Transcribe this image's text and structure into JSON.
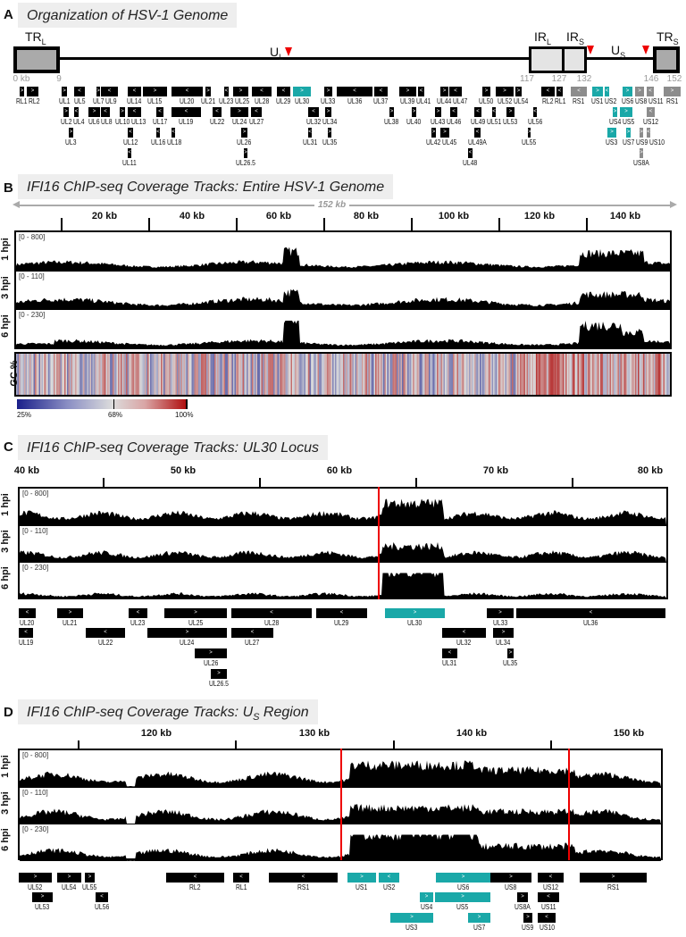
{
  "panelA": {
    "letter": "A",
    "title": "Organization of HSV-1 Genome",
    "regions": {
      "trl": "TR",
      "trl_sub": "L",
      "ul": "U",
      "ul_sub": "L",
      "irl": "IR",
      "irl_sub": "L",
      "irs": "IR",
      "irs_sub": "S",
      "us": "U",
      "us_sub": "S",
      "trs": "TR",
      "trs_sub": "S"
    },
    "coords": [
      "0 kb",
      "9",
      "117",
      "127",
      "132",
      "146",
      "152"
    ],
    "genes": [
      {
        "label": "RL1",
        "strand": ">",
        "color": "#000"
      },
      {
        "label": "RL2",
        "strand": ">",
        "color": "#000"
      },
      {
        "label": "UL1",
        "strand": ">",
        "color": "#000"
      },
      {
        "label": "UL5",
        "strand": "<",
        "color": "#000"
      },
      {
        "label": "UL7",
        "strand": ">",
        "color": "#000"
      },
      {
        "label": "UL9",
        "strand": "<",
        "color": "#000"
      },
      {
        "label": "UL14",
        "strand": "<",
        "color": "#000"
      },
      {
        "label": "UL15",
        "strand": ">",
        "color": "#000"
      },
      {
        "label": "UL20",
        "strand": "<",
        "color": "#000"
      },
      {
        "label": "UL21",
        "strand": ">",
        "color": "#000"
      },
      {
        "label": "UL23",
        "strand": "<",
        "color": "#000"
      },
      {
        "label": "UL25",
        "strand": ">",
        "color": "#000"
      },
      {
        "label": "UL28",
        "strand": "<",
        "color": "#000"
      },
      {
        "label": "UL29",
        "strand": "<",
        "color": "#000"
      },
      {
        "label": "UL30",
        "strand": ">",
        "color": "#1aa8a8"
      },
      {
        "label": "UL33",
        "strand": ">",
        "color": "#000"
      },
      {
        "label": "UL36",
        "strand": "<",
        "color": "#000"
      },
      {
        "label": "UL37",
        "strand": "<",
        "color": "#000"
      },
      {
        "label": "UL39",
        "strand": ">",
        "color": "#000"
      },
      {
        "label": "UL41",
        "strand": "<",
        "color": "#000"
      },
      {
        "label": "UL44",
        "strand": ">",
        "color": "#000"
      },
      {
        "label": "UL47",
        "strand": "<",
        "color": "#000"
      },
      {
        "label": "UL50",
        "strand": ">",
        "color": "#000"
      },
      {
        "label": "UL52",
        "strand": ">",
        "color": "#000"
      },
      {
        "label": "UL54",
        "strand": ">",
        "color": "#000"
      },
      {
        "label": "RL2",
        "strand": "<",
        "color": "#000"
      },
      {
        "label": "RL1",
        "strand": "<",
        "color": "#000"
      },
      {
        "label": "RS1",
        "strand": "<",
        "color": "#8c8c8c"
      },
      {
        "label": "US1",
        "strand": ">",
        "color": "#1aa8a8"
      },
      {
        "label": "US2",
        "strand": "<",
        "color": "#1aa8a8"
      },
      {
        "label": "US6",
        "strand": ">",
        "color": "#1aa8a8"
      },
      {
        "label": "US8",
        "strand": ">",
        "color": "#8c8c8c"
      },
      {
        "label": "US11",
        "strand": "<",
        "color": "#8c8c8c"
      },
      {
        "label": "RS1",
        "strand": ">",
        "color": "#8c8c8c"
      },
      {
        "label": "UL2",
        "strand": ">",
        "color": "#000"
      },
      {
        "label": "UL4",
        "strand": "<",
        "color": "#000"
      },
      {
        "label": "UL6",
        "strand": ">",
        "color": "#000"
      },
      {
        "label": "UL8",
        "strand": "<",
        "color": "#000"
      },
      {
        "label": "UL10",
        "strand": ">",
        "color": "#000"
      },
      {
        "label": "UL13",
        "strand": "<",
        "color": "#000"
      },
      {
        "label": "UL17",
        "strand": "<",
        "color": "#000"
      },
      {
        "label": "UL19",
        "strand": "<",
        "color": "#000"
      },
      {
        "label": "UL22",
        "strand": "<",
        "color": "#000"
      },
      {
        "label": "UL24",
        "strand": ">",
        "color": "#000"
      },
      {
        "label": "UL27",
        "strand": "<",
        "color": "#000"
      },
      {
        "label": "UL32",
        "strand": "<",
        "color": "#000"
      },
      {
        "label": "UL34",
        "strand": ">",
        "color": "#000"
      },
      {
        "label": "UL38",
        "strand": ">",
        "color": "#000"
      },
      {
        "label": "UL40",
        "strand": ">",
        "color": "#000"
      },
      {
        "label": "UL43",
        "strand": ">",
        "color": "#000"
      },
      {
        "label": "UL46",
        "strand": "<",
        "color": "#000"
      },
      {
        "label": "UL49",
        "strand": "<",
        "color": "#000"
      },
      {
        "label": "UL51",
        "strand": "<",
        "color": "#000"
      },
      {
        "label": "UL53",
        "strand": ">",
        "color": "#000"
      },
      {
        "label": "UL56",
        "strand": "<",
        "color": "#000"
      },
      {
        "label": "US4",
        "strand": ">",
        "color": "#1aa8a8"
      },
      {
        "label": "US5",
        "strand": ">",
        "color": "#1aa8a8"
      },
      {
        "label": "US12",
        "strand": "<",
        "color": "#8c8c8c"
      },
      {
        "label": "UL3",
        "strand": ">",
        "color": "#000"
      },
      {
        "label": "UL12",
        "strand": "<",
        "color": "#000"
      },
      {
        "label": "UL16",
        "strand": "<",
        "color": "#000"
      },
      {
        "label": "UL18",
        "strand": "<",
        "color": "#000"
      },
      {
        "label": "UL26",
        "strand": ">",
        "color": "#000"
      },
      {
        "label": "UL31",
        "strand": "<",
        "color": "#000"
      },
      {
        "label": "UL35",
        "strand": ">",
        "color": "#000"
      },
      {
        "label": "UL42",
        "strand": ">",
        "color": "#000"
      },
      {
        "label": "UL45",
        "strand": ">",
        "color": "#000"
      },
      {
        "label": "UL49A",
        "strand": "<",
        "color": "#000"
      },
      {
        "label": "UL55",
        "strand": ">",
        "color": "#000"
      },
      {
        "label": "US3",
        "strand": ">",
        "color": "#1aa8a8"
      },
      {
        "label": "US7",
        "strand": ">",
        "color": "#1aa8a8"
      },
      {
        "label": "US9",
        "strand": ">",
        "color": "#8c8c8c"
      },
      {
        "label": "US10",
        "strand": "<",
        "color": "#8c8c8c"
      },
      {
        "label": "UL11",
        "strand": "<",
        "color": "#000"
      },
      {
        "label": "UL26.5",
        "strand": ">",
        "color": "#000"
      },
      {
        "label": "UL48",
        "strand": "<",
        "color": "#000"
      },
      {
        "label": "US8A",
        "strand": ">",
        "color": "#8c8c8c"
      }
    ]
  },
  "panelB": {
    "letter": "B",
    "title": "IFI16 ChIP-seq Coverage Tracks: Entire HSV-1 Genome",
    "span": "152 kb",
    "axis": [
      "20 kb",
      "40 kb",
      "60 kb",
      "80 kb",
      "100 kb",
      "120 kb",
      "140 kb"
    ],
    "tracks": [
      {
        "name": "1 hpi",
        "range": "[0 - 800]"
      },
      {
        "name": "3 hpi",
        "range": "[0 - 110]"
      },
      {
        "name": "6 hpi",
        "range": "[0 - 230]"
      }
    ],
    "gc": {
      "name": "GC %",
      "scale": [
        "25%",
        "68%",
        "100%"
      ],
      "colors": {
        "low": "#1a1f8a",
        "mid": "#dcdcdc",
        "high": "#b01010"
      }
    }
  },
  "panelC": {
    "letter": "C",
    "title": "IFI16 ChIP-seq Coverage Tracks: UL30 Locus",
    "axis": [
      "40 kb",
      "50 kb",
      "60 kb",
      "70 kb",
      "80 kb"
    ],
    "tracks": [
      {
        "name": "1 hpi",
        "range": "[0 - 800]"
      },
      {
        "name": "3 hpi",
        "range": "[0 - 110]"
      },
      {
        "name": "6 hpi",
        "range": "[0 - 230]"
      }
    ],
    "genes": [
      {
        "label": "UL20",
        "strand": "<",
        "color": "#000"
      },
      {
        "label": "UL21",
        "strand": ">",
        "color": "#000"
      },
      {
        "label": "UL23",
        "strand": "<",
        "color": "#000"
      },
      {
        "label": "UL25",
        "strand": ">",
        "color": "#000"
      },
      {
        "label": "UL28",
        "strand": "<",
        "color": "#000"
      },
      {
        "label": "UL29",
        "strand": "<",
        "color": "#000"
      },
      {
        "label": "UL30",
        "strand": ">",
        "color": "#1aa8a8"
      },
      {
        "label": "UL33",
        "strand": ">",
        "color": "#000"
      },
      {
        "label": "UL36",
        "strand": "<",
        "color": "#000"
      },
      {
        "label": "UL19",
        "strand": "<",
        "color": "#000"
      },
      {
        "label": "UL22",
        "strand": "<",
        "color": "#000"
      },
      {
        "label": "UL24",
        "strand": ">",
        "color": "#000"
      },
      {
        "label": "UL27",
        "strand": "<",
        "color": "#000"
      },
      {
        "label": "UL32",
        "strand": "<",
        "color": "#000"
      },
      {
        "label": "UL34",
        "strand": ">",
        "color": "#000"
      },
      {
        "label": "UL26",
        "strand": ">",
        "color": "#000"
      },
      {
        "label": "UL31",
        "strand": "<",
        "color": "#000"
      },
      {
        "label": "UL35",
        "strand": ">",
        "color": "#000"
      },
      {
        "label": "UL26.5",
        "strand": ">",
        "color": "#000"
      }
    ]
  },
  "panelD": {
    "letter": "D",
    "title": "IFI16 ChIP-seq Coverage Tracks: U",
    "title_sub": "S",
    "title_end": " Region",
    "axis": [
      "120 kb",
      "130 kb",
      "140 kb",
      "150 kb"
    ],
    "tracks": [
      {
        "name": "1 hpi",
        "range": "[0 - 800]"
      },
      {
        "name": "3 hpi",
        "range": "[0 - 110]"
      },
      {
        "name": "6 hpi",
        "range": "[0 - 230]"
      }
    ],
    "genes": [
      {
        "label": "UL52",
        "strand": ">",
        "color": "#000"
      },
      {
        "label": "UL54",
        "strand": ">",
        "color": "#000"
      },
      {
        "label": "UL55",
        "strand": ">",
        "color": "#000"
      },
      {
        "label": "RL2",
        "strand": "<",
        "color": "#000"
      },
      {
        "label": "RL1",
        "strand": "<",
        "color": "#000"
      },
      {
        "label": "RS1",
        "strand": "<",
        "color": "#000"
      },
      {
        "label": "US1",
        "strand": ">",
        "color": "#1aa8a8"
      },
      {
        "label": "US2",
        "strand": "<",
        "color": "#1aa8a8"
      },
      {
        "label": "US6",
        "strand": ">",
        "color": "#1aa8a8"
      },
      {
        "label": "US8",
        "strand": ">",
        "color": "#000"
      },
      {
        "label": "US12",
        "strand": "<",
        "color": "#000"
      },
      {
        "label": "RS1",
        "strand": ">",
        "color": "#000"
      },
      {
        "label": "UL53",
        "strand": ">",
        "color": "#000"
      },
      {
        "label": "UL56",
        "strand": "<",
        "color": "#000"
      },
      {
        "label": "US4",
        "strand": ">",
        "color": "#1aa8a8"
      },
      {
        "label": "US5",
        "strand": ">",
        "color": "#1aa8a8"
      },
      {
        "label": "US8A",
        "strand": ">",
        "color": "#000"
      },
      {
        "label": "US11",
        "strand": "<",
        "color": "#000"
      },
      {
        "label": "US3",
        "strand": ">",
        "color": "#1aa8a8"
      },
      {
        "label": "US7",
        "strand": ">",
        "color": "#1aa8a8"
      },
      {
        "label": "US9",
        "strand": ">",
        "color": "#000"
      },
      {
        "label": "US10",
        "strand": "<",
        "color": "#000"
      }
    ]
  }
}
